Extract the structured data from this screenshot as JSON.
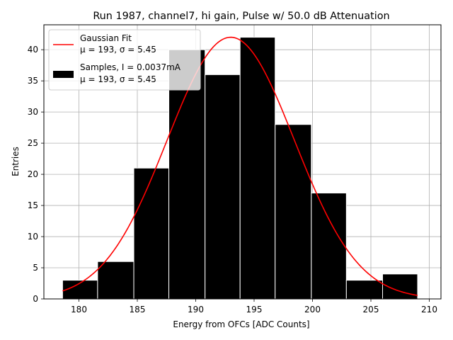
{
  "chart_data": {
    "type": "bar",
    "title": "Run 1987, channel7, hi gain, Pulse w/ 50.0 dB Attenuation",
    "xlabel": "Energy from OFCs [ADC Counts]",
    "ylabel": "Entries",
    "xlim": [
      177,
      211
    ],
    "ylim": [
      0,
      44
    ],
    "xticks": [
      180,
      185,
      190,
      195,
      200,
      205,
      210
    ],
    "yticks": [
      0,
      5,
      10,
      15,
      20,
      25,
      30,
      35,
      40
    ],
    "grid": true,
    "legend_position": "top-left",
    "bins": [
      {
        "x0": 178.6,
        "x1": 181.6,
        "value": 3
      },
      {
        "x0": 181.6,
        "x1": 184.7,
        "value": 6
      },
      {
        "x0": 184.7,
        "x1": 187.7,
        "value": 21
      },
      {
        "x0": 187.7,
        "x1": 190.8,
        "value": 40
      },
      {
        "x0": 190.8,
        "x1": 193.8,
        "value": 36
      },
      {
        "x0": 193.8,
        "x1": 196.8,
        "value": 42
      },
      {
        "x0": 196.8,
        "x1": 199.9,
        "value": 28
      },
      {
        "x0": 199.9,
        "x1": 202.9,
        "value": 17
      },
      {
        "x0": 202.9,
        "x1": 206.0,
        "value": 3
      },
      {
        "x0": 206.0,
        "x1": 209.0,
        "value": 4
      }
    ],
    "series": [
      {
        "name": "Gaussian Fit",
        "stats": "μ = 193, σ = 5.45",
        "kind": "line",
        "color": "#ff0000",
        "mu": 193,
        "sigma": 5.45,
        "amplitude": 42,
        "x_range": [
          178.6,
          209.0
        ]
      },
      {
        "name": "Samples, I = 0.0037mA",
        "stats": "μ = 193, σ = 5.45",
        "kind": "histogram",
        "color": "#000000",
        "edgecolor": "#ffffff"
      }
    ]
  }
}
